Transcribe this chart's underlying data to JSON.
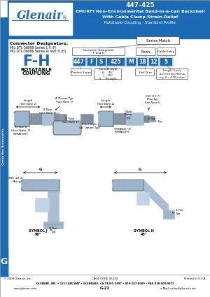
{
  "title_number": "447-425",
  "title_line1": "EMI/RFI Non-Environmental Band-in-a-Can Backshell",
  "title_line2": "With Cable Clamp Strain-Relief",
  "title_line3": "Rotatable Coupling - Standard Profile",
  "header_bg": "#1a6ab5",
  "sidebar_bg": "#1a6ab5",
  "sidebar_text": "Connector Accessories",
  "logo_text": "Glenair",
  "left_label": "Connector Designators:",
  "left_sub1": "MIL-DTL-38999 Series I, II (F)",
  "left_sub2": "MIL-DTL-38999 Series III and IV (H)",
  "coupling_code": "F-H",
  "coupling_label1": "ROTATABLE",
  "coupling_label2": "COUPLING",
  "part_number_boxes": [
    "447",
    "F",
    "S",
    "425",
    "M",
    "18",
    "12",
    "5"
  ],
  "part_box_bg": "#1a6ab5",
  "series_match_label": "Series Match",
  "connector_designator_label": "Connector Designator\nF and H",
  "finish_label": "Finish",
  "cable_entry_label": "Cable Entry",
  "product_series_label": "Product Series",
  "contact_style_label": "Contact Style\nH  -  45°\nJ  -  90°\nS  -  Straight",
  "shell_size_label": "Shell Size",
  "length_label": "Length: S only\n(1/2-inch increments,\ne.g. 8 = 4.00 inches)",
  "footer_company": "GLENAIR, INC. • 1211 AIR WAY • GLENDALE, CA 91201-2497 • 818-247-6000 • FAX 818-500-9912",
  "footer_web": "www.glenair.com",
  "footer_email": "e-Mail: sales@glenair.com",
  "footer_page": "G-22",
  "footer_copyright": "© 2009 Glenair, Inc.",
  "footer_cage": "CAGE CODE 06324",
  "footer_printed": "Printed in U.S.A.",
  "g_tab_text": "G",
  "bg_color": "#ffffff"
}
